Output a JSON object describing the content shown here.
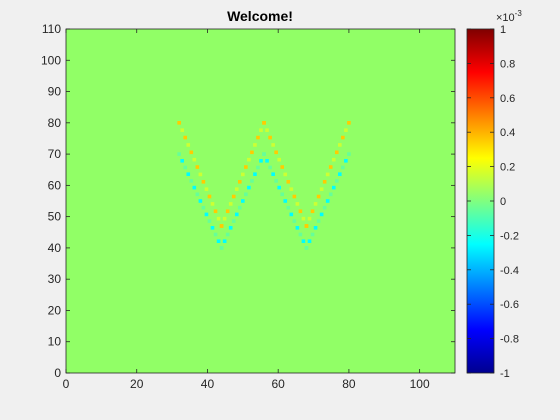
{
  "chart_data": {
    "type": "heatmap",
    "title": "Welcome!",
    "xlabel": "",
    "ylabel": "",
    "xlim": [
      0,
      110
    ],
    "ylim": [
      0,
      110
    ],
    "x_ticks": [
      "0",
      "20",
      "40",
      "60",
      "80",
      "100"
    ],
    "y_ticks": [
      "0",
      "10",
      "20",
      "30",
      "40",
      "50",
      "60",
      "70",
      "80",
      "90",
      "100",
      "110"
    ],
    "grid": false,
    "colormap": "jet",
    "background_value": 0,
    "colorbar": {
      "range": [
        -1,
        1
      ],
      "ticks": [
        "-1",
        "-0.8",
        "-0.6",
        "-0.4",
        "-0.2",
        "0",
        "0.2",
        "0.4",
        "0.6",
        "0.8",
        "1"
      ],
      "exponent_label": "×10",
      "exponent_value": "-3"
    },
    "pattern": {
      "letter": "W",
      "vertices_upper": [
        [
          32,
          80
        ],
        [
          44,
          47
        ],
        [
          56,
          80
        ],
        [
          68,
          47
        ],
        [
          80,
          80
        ]
      ],
      "vertices_lower": [
        [
          32,
          70
        ],
        [
          44,
          40
        ],
        [
          56,
          70
        ],
        [
          68,
          40
        ],
        [
          80,
          70
        ]
      ],
      "upper_value": 0.25,
      "lower_value": -0.15
    }
  }
}
